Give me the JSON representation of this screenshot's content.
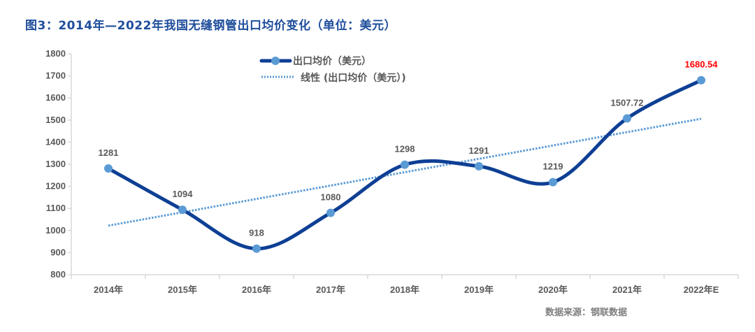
{
  "title": "图3：2014年—2022年我国无缝钢管出口均价变化（单位：美元）",
  "source": "数据来源：钢联数据",
  "legend": {
    "series_label": "出口均价（美元）",
    "trend_label": "线性 (出口均价（美元）)"
  },
  "colors": {
    "title": "#1f4e9c",
    "series_line": "#0e3f94",
    "series_marker": "#5b9bd5",
    "trend_line": "#5b9bd5",
    "highlight_label": "#ff0000",
    "axis": "#d9d9d9",
    "text": "#595959"
  },
  "chart_data": {
    "type": "line",
    "title": "图3：2014年—2022年我国无缝钢管出口均价变化（单位：美元）",
    "xlabel": "",
    "ylabel": "",
    "categories": [
      "2014年",
      "2015年",
      "2016年",
      "2017年",
      "2018年",
      "2019年",
      "2020年",
      "2021年",
      "2022年E"
    ],
    "series": [
      {
        "name": "出口均价（美元）",
        "values": [
          1281,
          1094,
          918,
          1080,
          1298,
          1291,
          1219,
          1507.72,
          1680.54
        ],
        "labels": [
          "1281",
          "1094",
          "918",
          "1080",
          "1298",
          "1291",
          "1219",
          "1507.72",
          "1680.54"
        ],
        "smooth": true,
        "markers": true
      },
      {
        "name": "线性 (出口均价（美元）)",
        "type": "trendline-linear",
        "values": [
          1022,
          1083,
          1143,
          1204,
          1264,
          1325,
          1385,
          1446,
          1506
        ]
      }
    ],
    "yticks": [
      "800",
      "900",
      "1000",
      "1100",
      "1200",
      "1300",
      "1400",
      "1500",
      "1600",
      "1700",
      "1800"
    ],
    "ylim": [
      800,
      1800
    ],
    "grid": false,
    "legend_position": "top-center",
    "annotations": [
      {
        "category": "2022年E",
        "text": "1680.54",
        "color": "#ff0000"
      }
    ]
  }
}
